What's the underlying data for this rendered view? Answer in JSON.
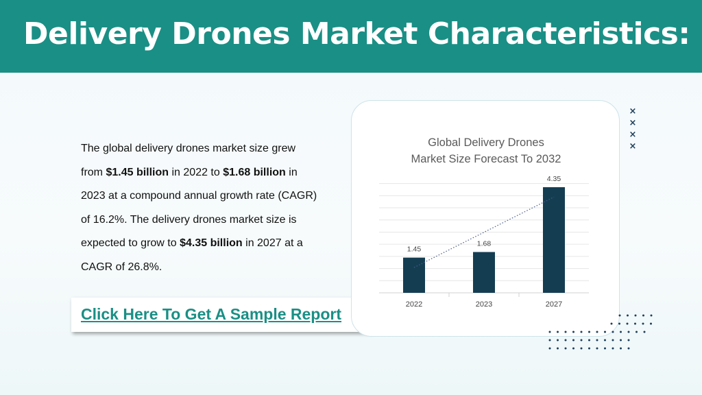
{
  "header": {
    "title": "Delivery Drones Market Characteristics:",
    "background": "#1a8f85"
  },
  "body": {
    "t1": "The global delivery drones market size grew from ",
    "b1": "$1.45 billion",
    "t2": " in 2022 to ",
    "b2": "$1.68 billion",
    "t3": " in 2023 at a compound annual growth rate (CAGR) of 16.2%. The delivery drones market size is expected to grow to ",
    "b3": "$4.35 billion",
    "t4": " in 2027 at a CAGR of 26.8%."
  },
  "cta": {
    "label": "Click Here To Get A Sample Report"
  },
  "decor": {
    "x_mark": "×"
  },
  "chart_data": {
    "type": "bar",
    "title": "Global Delivery Drones Market Size Forecast To 2032",
    "title_lines": [
      "Global Delivery Drones",
      "Market Size Forecast To 2032"
    ],
    "categories": [
      "2022",
      "2023",
      "2027"
    ],
    "values": [
      1.45,
      1.68,
      4.35
    ],
    "data_labels": [
      "1.45",
      "1.68",
      "4.35"
    ],
    "ylim": [
      0,
      4.8
    ],
    "grid": true,
    "trendline": "linear, dotted",
    "bar_color": "#143d52",
    "trend_color": "#4a5a8a",
    "legend": "none"
  }
}
